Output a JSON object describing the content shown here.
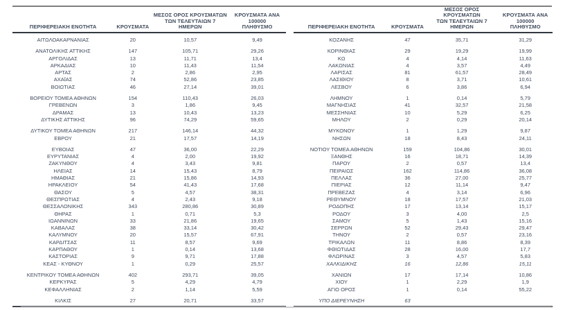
{
  "document": {
    "type": "regional-covid-cases-table",
    "language": "el"
  },
  "colors": {
    "text": "#3f4a5c",
    "top_rule": "#7f7f7f",
    "header_rule": "#31383f",
    "bottom_rule": "#40464f",
    "background": "#ffffff"
  },
  "columns": [
    "ΠΕΡΙΦΕΡΕΙΑΚΗ ΕΝΟΤΗΤΑ",
    "ΚΡΟΥΣΜΑΤΑ",
    "ΜΕΣΟΣ ΟΡΟΣ ΚΡΟΥΣΜΑΤΩΝ\nΤΩΝ ΤΕΛΕΥΤΑΙΩΝ 7\nΗΜΕΡΩΝ",
    "ΚΡΟΥΣΜΑΤΑ ΑΝΑ 100000\nΠΛΗΘΥΣΜΟ"
  ],
  "tables": [
    {
      "side": "left",
      "groups": [
        [
          [
            "ΑΙΤΩΛΟΑΚΑΡΝΑΝΙΑΣ",
            "20",
            "10,57",
            "9,49"
          ]
        ],
        [
          [
            "ΑΝΑΤΟΛΙΚΗΣ ΑΤΤΙΚΗΣ",
            "147",
            "105,71",
            "29,26"
          ],
          [
            "ΑΡΓΟΛΙΔΑΣ",
            "13",
            "11,71",
            "13,4"
          ],
          [
            "ΑΡΚΑΔΙΑΣ",
            "10",
            "11,43",
            "11,54"
          ],
          [
            "ΑΡΤΑΣ",
            "2",
            "2,86",
            "2,95"
          ],
          [
            "ΑΧΑΪΑΣ",
            "74",
            "52,86",
            "23,85"
          ],
          [
            "ΒΟΙΩΤΙΑΣ",
            "46",
            "27,14",
            "39,01"
          ]
        ],
        [
          [
            "ΒΟΡΕΙΟΥ ΤΟΜΕΑ ΑΘΗΝΩΝ",
            "154",
            "110,43",
            "26,03"
          ],
          [
            "ΓΡΕΒΕΝΩΝ",
            "3",
            "1,86",
            "9,45"
          ],
          [
            "ΔΡΑΜΑΣ",
            "13",
            "10,43",
            "13,23"
          ],
          [
            "ΔΥΤΙΚΗΣ ΑΤΤΙΚΗΣ",
            "96",
            "74,29",
            "59,65"
          ]
        ],
        [
          [
            "ΔΥΤΙΚΟΥ ΤΟΜΕΑ ΑΘΗΝΩΝ",
            "217",
            "146,14",
            "44,32"
          ],
          [
            "ΕΒΡΟΥ",
            "21",
            "17,57",
            "14,19"
          ]
        ],
        [
          [
            "ΕΥΒΟΙΑΣ",
            "47",
            "36,00",
            "22,29"
          ],
          [
            "ΕΥΡΥΤΑΝΙΑΣ",
            "4",
            "2,00",
            "19,92"
          ],
          [
            "ΖΑΚΥΝΘΟΥ",
            "4",
            "3,43",
            "9,81"
          ],
          [
            "ΗΛΕΙΑΣ",
            "14",
            "15,43",
            "8,79"
          ],
          [
            "ΗΜΑΘΙΑΣ",
            "21",
            "15,86",
            "14,93"
          ],
          [
            "ΗΡΑΚΛΕΙΟΥ",
            "54",
            "41,43",
            "17,68"
          ],
          [
            "ΘΑΣΟΥ",
            "5",
            "4,57",
            "38,31"
          ],
          [
            "ΘΕΣΠΡΩΤΙΑΣ",
            "4",
            "2,43",
            "9,18"
          ],
          [
            "ΘΕΣΣΑΛΟΝΙΚΗΣ",
            "343",
            "280,86",
            "30,89"
          ],
          [
            "ΘΗΡΑΣ",
            "1",
            "0,71",
            "5,3"
          ],
          [
            "ΙΩΑΝΝΙΝΩΝ",
            "33",
            "21,86",
            "19,65"
          ],
          [
            "ΚΑΒΑΛΑΣ",
            "38",
            "33,14",
            "30,42"
          ],
          [
            "ΚΑΛΥΜΝΟΥ",
            "20",
            "15,57",
            "67,91"
          ],
          [
            "ΚΑΡΔΙΤΣΑΣ",
            "11",
            "8,57",
            "9,69"
          ],
          [
            "ΚΑΡΠΑΘΟΥ",
            "1",
            "0,14",
            "13,68"
          ],
          [
            "ΚΑΣΤΟΡΙΑΣ",
            "9",
            "9,71",
            "17,88"
          ],
          [
            "ΚΕΑΣ - ΚΥΘΝΟΥ",
            "1",
            "0,29",
            "25,57"
          ]
        ],
        [
          [
            "ΚΕΝΤΡΙΚΟΥ ΤΟΜΕΑ ΑΘΗΝΩΝ",
            "402",
            "293,71",
            "39,05"
          ],
          [
            "ΚΕΡΚΥΡΑΣ",
            "5",
            "4,29",
            "4,79"
          ],
          [
            "ΚΕΦΑΛΛΗΝΙΑΣ",
            "2",
            "1,14",
            "5,59"
          ]
        ],
        [
          [
            "ΚΙΛΚΙΣ",
            "27",
            "20,71",
            "33,57"
          ]
        ]
      ]
    },
    {
      "side": "right",
      "groups": [
        [
          [
            "ΚΟΖΑΝΗΣ",
            "47",
            "35,71",
            "31,29"
          ]
        ],
        [
          [
            "ΚΟΡΙΝΘΙΑΣ",
            "29",
            "19,29",
            "19,99"
          ],
          [
            "ΚΩ",
            "4",
            "4,14",
            "11,63"
          ],
          [
            "ΛΑΚΩΝΙΑΣ",
            "4",
            "3,57",
            "4,49"
          ],
          [
            "ΛΑΡΙΣΑΣ",
            "81",
            "61,57",
            "28,49"
          ],
          [
            "ΛΑΣΙΘΙΟΥ",
            "8",
            "3,71",
            "10,61"
          ],
          [
            "ΛΕΣΒΟΥ",
            "6",
            "3,86",
            "6,94"
          ]
        ],
        [
          [
            "ΛΗΜΝΟΥ",
            "1",
            "0,14",
            "5,79"
          ],
          [
            "ΜΑΓΝΗΣΙΑΣ",
            "41",
            "32,57",
            "21,58"
          ],
          [
            "ΜΕΣΣΗΝΙΑΣ",
            "10",
            "5,29",
            "6,25"
          ],
          [
            "ΜΗΛΟΥ",
            "2",
            "0,29",
            "20,14"
          ]
        ],
        [
          [
            "ΜΥΚΟΝΟΥ",
            "1",
            "1,29",
            "9,87"
          ],
          [
            "ΝΗΣΩΝ",
            "18",
            "8,43",
            "24,11"
          ]
        ],
        [
          [
            "ΝΟΤΙΟΥ ΤΟΜΕΑ ΑΘΗΝΩΝ",
            "159",
            "104,86",
            "30,01"
          ],
          [
            "ΞΑΝΘΗΣ",
            "16",
            "18,71",
            "14,39"
          ],
          [
            "ΠΑΡΟΥ",
            "2",
            "0,57",
            "13,4"
          ],
          [
            "ΠΕΙΡΑΙΩΣ",
            "162",
            "114,86",
            "36,08"
          ],
          [
            "ΠΕΛΛΑΣ",
            "36",
            "27,00",
            "25,77"
          ],
          [
            "ΠΙΕΡΙΑΣ",
            "12",
            "11,14",
            "9,47"
          ],
          [
            "ΠΡΕΒΕΖΑΣ",
            "4",
            "3,14",
            "6,96"
          ],
          [
            "ΡΕΘΥΜΝΟΥ",
            "18",
            "17,57",
            "21,03"
          ],
          [
            "ΡΟΔΟΠΗΣ",
            "17",
            "13,14",
            "15,17"
          ],
          [
            "ΡΟΔΟΥ",
            "3",
            "4,00",
            "2,5"
          ],
          [
            "ΣΑΜΟΥ",
            "5",
            "1,43",
            "15,16"
          ],
          [
            "ΣΕΡΡΩΝ",
            "52",
            "29,43",
            "29,47"
          ],
          [
            "ΤΗΝΟΥ",
            "2",
            "0,57",
            "23,16"
          ],
          [
            "ΤΡΙΚΑΛΩΝ",
            "11",
            "8,86",
            "8,39"
          ],
          [
            "ΦΘΙΩΤΙΔΑΣ",
            "28",
            "16,00",
            "17,7"
          ],
          [
            "ΦΛΩΡΙΝΑΣ",
            "3",
            "4,57",
            "5,83"
          ],
          [
            "ΧΑΛΚΙΔΙΚΗΣ",
            "16",
            "12,86",
            "15,11",
            true
          ]
        ],
        [
          [
            "ΧΑΝΙΩΝ",
            "17",
            "17,14",
            "10,86"
          ],
          [
            "ΧΙΟΥ",
            "1",
            "2,29",
            "1,9"
          ],
          [
            "ΑΓΙΟ ΟΡΟΣ",
            "1",
            "0,14",
            "55,22"
          ]
        ],
        [
          [
            "ΥΠΟ ΔΙΕΡΕΥΝΗΣΗ",
            "63",
            "",
            "",
            true
          ]
        ]
      ]
    }
  ]
}
